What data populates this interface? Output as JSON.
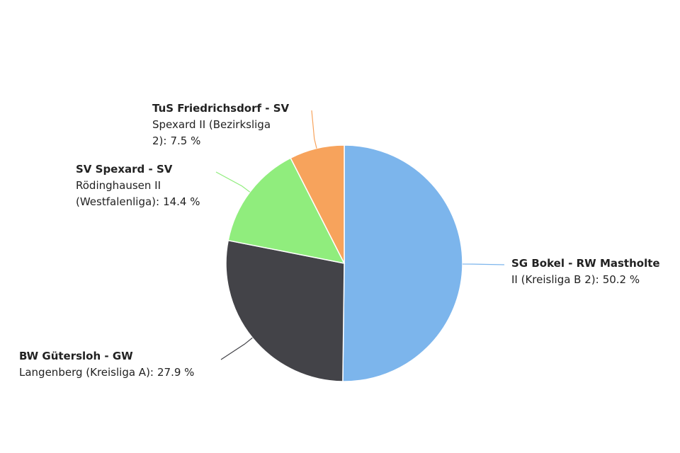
{
  "chart_data": {
    "type": "pie",
    "categories": [
      [
        "SG Bokel - RW Mastholte",
        "II (Kreisliga B 2):"
      ],
      [
        "BW Gütersloh - GW",
        "Langenberg (Kreisliga A):"
      ],
      [
        "SV Spexard - SV",
        "Rödinghausen II",
        "(Westfalenliga):"
      ],
      [
        "TuS Friedrichsdorf - SV",
        "Spexard II (Bezirksliga",
        "2):"
      ]
    ],
    "values": [
      50.2,
      27.9,
      14.4,
      7.5
    ],
    "value_labels": [
      "50.2 %",
      "27.9 %",
      "14.4 %",
      "7.5 %"
    ],
    "colors": [
      "#7cb5ec",
      "#434348",
      "#90ed7d",
      "#f7a35c"
    ]
  }
}
